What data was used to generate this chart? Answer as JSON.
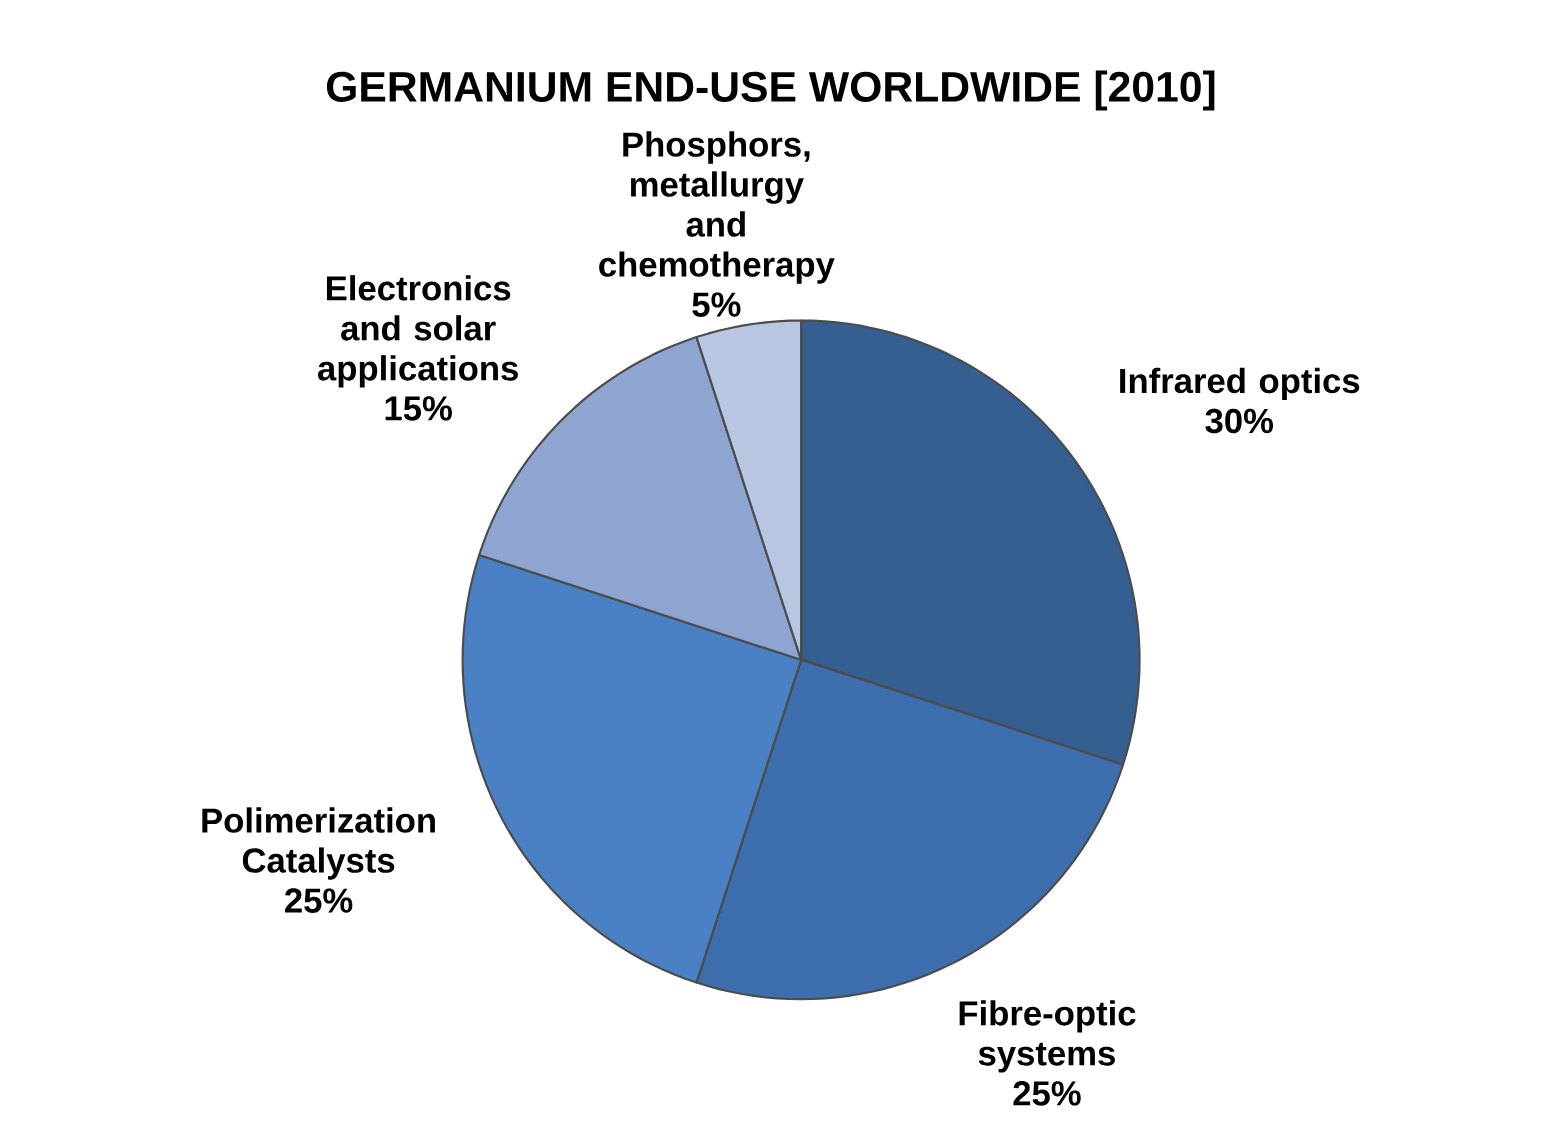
{
  "chart_data": {
    "type": "pie",
    "title": "GERMANIUM END-USE WORLDWIDE [2010]",
    "categories": [
      "Infrared optics",
      "Fibre-optic systems",
      "Polimerization Catalysts",
      "Electronics and solar applications",
      "Phosphors, metallurgy and chemotherapy"
    ],
    "values": [
      30,
      25,
      25,
      15,
      5
    ],
    "colors": [
      "#365f91",
      "#3d6ead",
      "#4a80c4",
      "#8ea4d1",
      "#b8c6e2"
    ],
    "value_labels": [
      "30%",
      "25%",
      "25%",
      "15%",
      "5%"
    ]
  }
}
